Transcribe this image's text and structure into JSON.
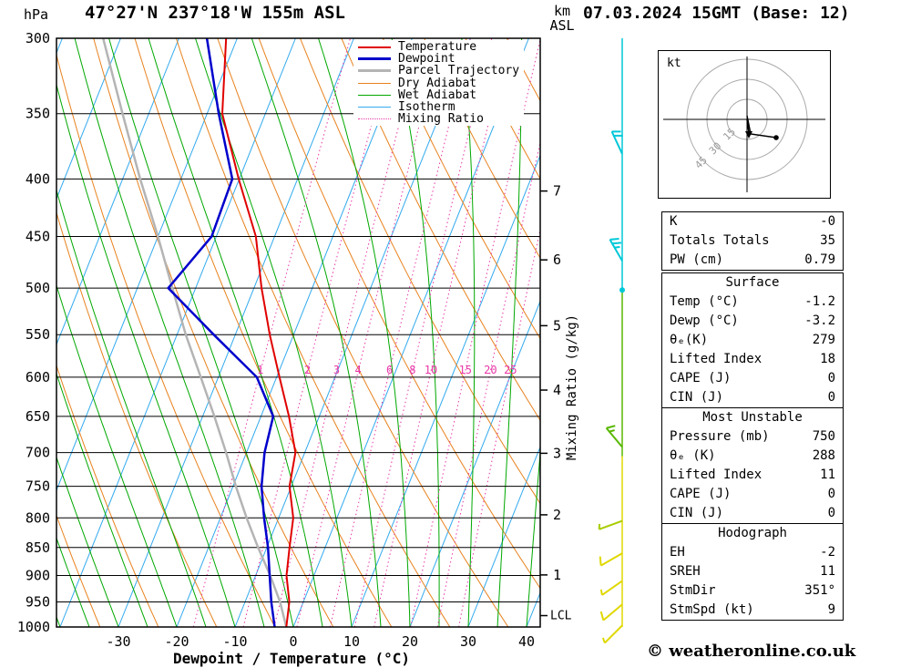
{
  "header": {
    "pressure_unit": "hPa",
    "title": "47°27'N 237°18'W 155m ASL",
    "date": "07.03.2024 15GMT (Base: 12)",
    "km_line1": "km",
    "km_line2": "ASL"
  },
  "chart_data": {
    "type": "skewt_log_p",
    "x_label": "Dewpoint / Temperature (°C)",
    "temp_ticks": [
      -30,
      -20,
      -10,
      0,
      10,
      20,
      30,
      40
    ],
    "pressure_ticks": [
      300,
      350,
      400,
      450,
      500,
      550,
      600,
      650,
      700,
      750,
      800,
      850,
      900,
      950,
      1000
    ],
    "pressure_range": [
      300,
      1000
    ],
    "temp_range_at_surface": [
      -40,
      42
    ],
    "km_ticks": [
      {
        "km": "7",
        "p": 410
      },
      {
        "km": "6",
        "p": 472
      },
      {
        "km": "5",
        "p": 540
      },
      {
        "km": "4",
        "p": 616
      },
      {
        "km": "3",
        "p": 701
      },
      {
        "km": "2",
        "p": 795
      },
      {
        "km": "1",
        "p": 899
      }
    ],
    "lcl": {
      "label": "LCL",
      "p": 977
    },
    "mixing_ratio_label": "Mixing Ratio (g/kg)",
    "mixing_ratio_values": [
      1,
      2,
      3,
      4,
      6,
      8,
      10,
      15,
      20,
      25
    ],
    "legend": [
      {
        "label": "Temperature",
        "color": "#e00000",
        "lw": 2,
        "dash": false
      },
      {
        "label": "Dewpoint",
        "color": "#0000cc",
        "lw": 3,
        "dash": false
      },
      {
        "label": "Parcel Trajectory",
        "color": "#b4b4b4",
        "lw": 3,
        "dash": false
      },
      {
        "label": "Dry Adiabat",
        "color": "#e8821e",
        "lw": 1.5,
        "dash": false
      },
      {
        "label": "Wet Adiabat",
        "color": "#00a800",
        "lw": 1.5,
        "dash": false
      },
      {
        "label": "Isotherm",
        "color": "#33aaee",
        "lw": 1.5,
        "dash": false
      },
      {
        "label": "Mixing Ratio",
        "color": "#e838a8",
        "lw": 1.5,
        "dash": true
      }
    ],
    "colors": {
      "temperature": "#e00000",
      "dewpoint": "#0000cc",
      "parcel": "#b4b4b4",
      "dry_adiabat": "#e8821e",
      "wet_adiabat": "#00a800",
      "isotherm": "#33aaee",
      "mixing_ratio": "#e838a8",
      "grid": "#000000"
    },
    "sounding": {
      "pressure": [
        1000,
        950,
        900,
        850,
        800,
        750,
        700,
        650,
        600,
        550,
        500,
        450,
        400,
        350,
        300
      ],
      "temperature": [
        -1.2,
        -2.4,
        -4.7,
        -6.1,
        -7.5,
        -10.3,
        -11.6,
        -15.2,
        -19.5,
        -24.1,
        -28.7,
        -33.2,
        -40.1,
        -47.4,
        -51.9
      ],
      "dewpoint": [
        -3.2,
        -5.5,
        -7.6,
        -9.8,
        -12.5,
        -15.1,
        -16.9,
        -17.9,
        -23.4,
        -33.7,
        -44.7,
        -40.8,
        -41.2,
        -48.0,
        -55.2
      ],
      "parcel": [
        -1.2,
        -4.0,
        -7.5,
        -11.5,
        -15.5,
        -19.5,
        -23.5,
        -28.0,
        -33.0,
        -38.5,
        -44.0,
        -50.0,
        -57.0,
        -64.5,
        -73.0
      ]
    },
    "wind_staff": [
      {
        "p1": 300,
        "p2": 502,
        "color": "#00c8d8"
      },
      {
        "p1": 502,
        "p2": 705,
        "color": "#58b800"
      },
      {
        "p1": 705,
        "p2": 1000,
        "color": "#e0d800"
      }
    ],
    "wind_barbs": [
      {
        "p": 380,
        "dir": 335,
        "full": 2,
        "half": 0,
        "color": "#00c8d8"
      },
      {
        "p": 473,
        "dir": 330,
        "full": 2,
        "half": 1,
        "color": "#00c8d8"
      },
      {
        "p": 502,
        "calm": true,
        "color": "#00c8d8"
      },
      {
        "p": 692,
        "dir": 320,
        "full": 1,
        "half": 1,
        "color": "#58b800"
      },
      {
        "p": 805,
        "dir": 250,
        "full": 0,
        "half": 1,
        "color": "#a8cc00"
      },
      {
        "p": 860,
        "dir": 240,
        "full": 1,
        "half": 0,
        "color": "#e0d800"
      },
      {
        "p": 910,
        "dir": 235,
        "full": 0,
        "half": 1,
        "color": "#e0d800"
      },
      {
        "p": 955,
        "dir": 230,
        "full": 1,
        "half": 0,
        "color": "#e0d800"
      },
      {
        "p": 997,
        "dir": 225,
        "full": 0,
        "half": 1,
        "color": "#e0d800"
      }
    ]
  },
  "hodograph": {
    "unit_label": "kt",
    "ring_radii": [
      22,
      44,
      66
    ],
    "ring_labels": [
      "15",
      "30",
      "45"
    ],
    "trace": [
      [
        98,
        72
      ],
      [
        102,
        92
      ],
      [
        130,
        96
      ]
    ],
    "dot": [
      130,
      96
    ],
    "storm_arrow": {
      "from": [
        98,
        76
      ],
      "to": [
        100,
        91
      ]
    }
  },
  "tables": [
    {
      "header": null,
      "rows": [
        {
          "label": "K",
          "value": "-0"
        },
        {
          "label": "Totals Totals",
          "value": "35"
        },
        {
          "label": "PW (cm)",
          "value": "0.79"
        }
      ]
    },
    {
      "header": "Surface",
      "rows": [
        {
          "label": "Temp (°C)",
          "value": "-1.2"
        },
        {
          "label": "Dewp (°C)",
          "value": "-3.2"
        },
        {
          "label": "θₑ(K)",
          "value": "279"
        },
        {
          "label": "Lifted Index",
          "value": "18"
        },
        {
          "label": "CAPE (J)",
          "value": "0"
        },
        {
          "label": "CIN (J)",
          "value": "0"
        }
      ]
    },
    {
      "header": "Most Unstable",
      "rows": [
        {
          "label": "Pressure (mb)",
          "value": "750"
        },
        {
          "label": "θₑ (K)",
          "value": "288"
        },
        {
          "label": "Lifted Index",
          "value": "11"
        },
        {
          "label": "CAPE (J)",
          "value": "0"
        },
        {
          "label": "CIN (J)",
          "value": "0"
        }
      ]
    },
    {
      "header": "Hodograph",
      "rows": [
        {
          "label": "EH",
          "value": "-2"
        },
        {
          "label": "SREH",
          "value": "11"
        },
        {
          "label": "StmDir",
          "value": "351°"
        },
        {
          "label": "StmSpd (kt)",
          "value": "9"
        }
      ]
    }
  ],
  "footer": {
    "copyright": "© weatheronline.co.uk"
  }
}
